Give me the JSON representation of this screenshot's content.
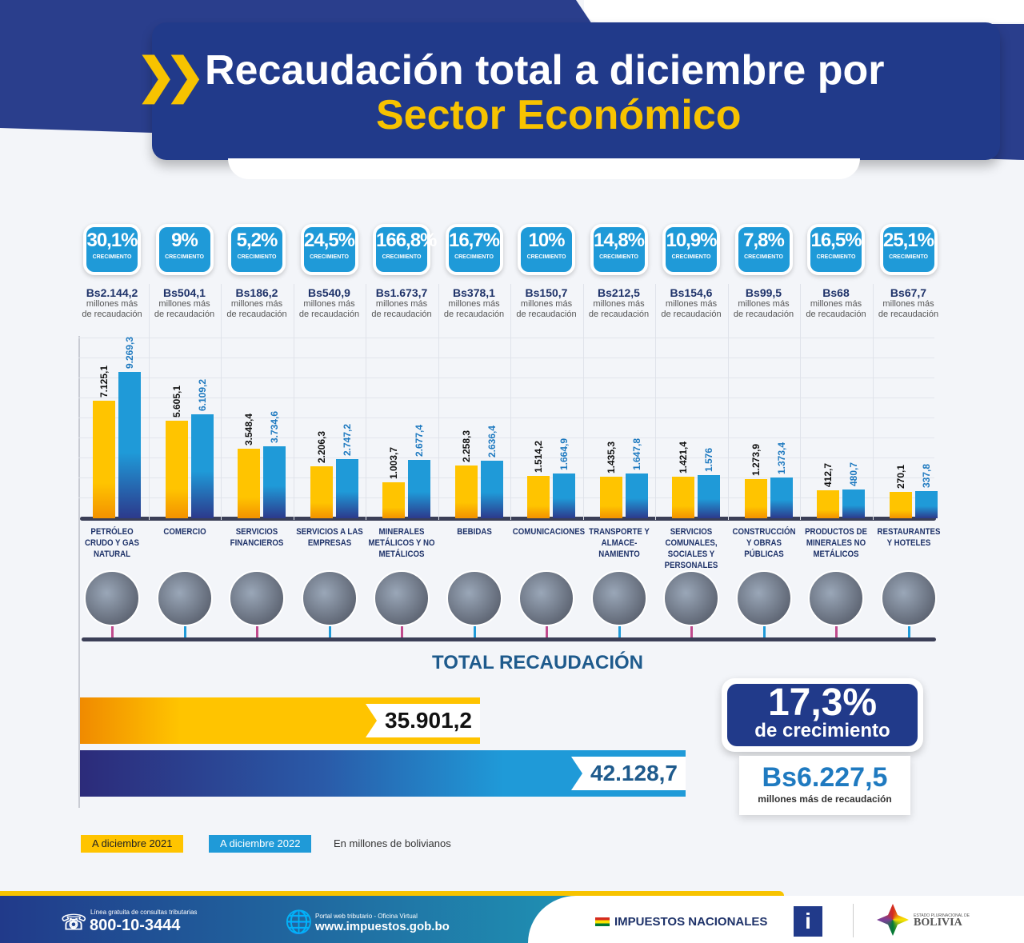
{
  "header": {
    "title_line1": "Recaudación total a diciembre por",
    "title_line2": "Sector Económico"
  },
  "badge_caption": "CRECIMIENTO",
  "increase_caption_1": "millones más",
  "increase_caption_2": "de recaudación",
  "chart_data": {
    "type": "bar",
    "categories": [
      "PETRÓLEO CRUDO Y GAS NATURAL",
      "COMERCIO",
      "SERVICIOS FINANCIEROS",
      "SERVICIOS A LAS EMPRESAS",
      "MINERALES METÁLICOS Y NO METÁLICOS",
      "BEBIDAS",
      "COMUNICACIONES",
      "TRANSPORTE Y ALMACE-NAMIENTO",
      "SERVICIOS COMUNALES, SOCIALES Y PERSONALES",
      "CONSTRUCCIÓN Y OBRAS PÚBLICAS",
      "PRODUCTOS DE MINERALES NO METÁLICOS",
      "RESTAURANTES Y HOTELES"
    ],
    "series": [
      {
        "name": "A diciembre 2021",
        "color": "#ffc400",
        "values": [
          7125.1,
          5605.1,
          3548.4,
          2206.3,
          1003.7,
          2258.3,
          1514.2,
          1435.3,
          1421.4,
          1273.9,
          412.7,
          270.1
        ],
        "labels": [
          "7.125,1",
          "5.605,1",
          "3.548,4",
          "2.206,3",
          "1.003,7",
          "2.258,3",
          "1.514,2",
          "1.435,3",
          "1.421,4",
          "1.273,9",
          "412,7",
          "270,1"
        ]
      },
      {
        "name": "A diciembre 2022",
        "color": "#1f9ad8",
        "values": [
          9269.3,
          6109.2,
          3734.6,
          2747.2,
          2677.4,
          2636.4,
          1664.9,
          1647.8,
          1576,
          1373.4,
          480.7,
          337.8
        ],
        "labels": [
          "9.269,3",
          "6.109,2",
          "3.734,6",
          "2.747,2",
          "2.677,4",
          "2.636,4",
          "1.664,9",
          "1.647,8",
          "1.576",
          "1.373,4",
          "480,7",
          "337,8"
        ]
      }
    ],
    "growth": [
      "30,1%",
      "9%",
      "5,2%",
      "24,5%",
      "166,8%",
      "16,7%",
      "10%",
      "14,8%",
      "10,9%",
      "7,8%",
      "16,5%",
      "25,1%"
    ],
    "increase": [
      "Bs2.144,2",
      "Bs504,1",
      "Bs186,2",
      "Bs540,9",
      "Bs1.673,7",
      "Bs378,1",
      "Bs150,7",
      "Bs212,5",
      "Bs154,6",
      "Bs99,5",
      "Bs68",
      "Bs67,7"
    ],
    "unit_note": "En millones de bolivianos",
    "legend": "bottom-left"
  },
  "total": {
    "title": "TOTAL RECAUDACIÓN",
    "value_2021": "35.901,2",
    "value_2022": "42.128,7",
    "growth_pct": "17,3%",
    "growth_label": "de crecimiento",
    "increase": "Bs6.227,5",
    "increase_label": "millones más de recaudación"
  },
  "legend": {
    "y2021": "A diciembre 2021",
    "y2022": "A diciembre 2022",
    "note": "En millones de bolivianos"
  },
  "footer": {
    "phone_caption": "Línea gratuita de consultas tributarias",
    "phone": "800-10-3444",
    "web_caption": "Portal web tributario - Oficina Virtual",
    "web": "www.impuestos.gob.bo",
    "brand": "IMPUESTOS NACIONALES",
    "state_small": "ESTADO PLURINACIONAL DE",
    "state": "BOLIVIA"
  }
}
